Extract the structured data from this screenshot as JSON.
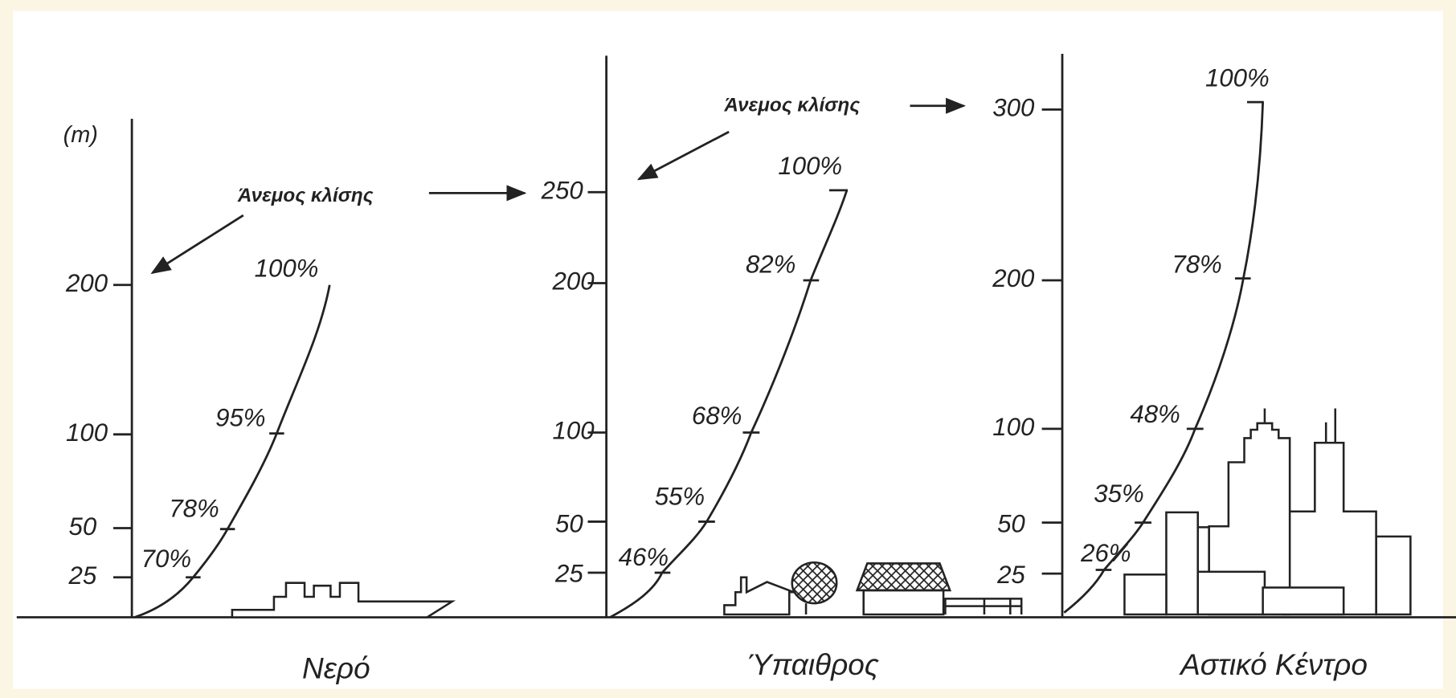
{
  "unit_label": "(m)",
  "panels": [
    {
      "title": "Νερό",
      "gradient_wind_label": "Άνεμος κλίσης",
      "y_ticks": [
        "200",
        "100",
        "50",
        "25"
      ],
      "profile_labels": [
        "100%",
        "95%",
        "78%",
        "70%"
      ]
    },
    {
      "title": "Ύπαιθρος",
      "gradient_wind_label": "Άνεμος κλίσης",
      "y_ticks": [
        "250",
        "200",
        "100",
        "50",
        "25"
      ],
      "profile_labels": [
        "100%",
        "82%",
        "68%",
        "55%",
        "46%"
      ]
    },
    {
      "title": "Αστικό Κέντρο",
      "y_ticks": [
        "300",
        "200",
        "100",
        "50",
        "25"
      ],
      "profile_labels": [
        "100%",
        "78%",
        "48%",
        "35%",
        "26%"
      ]
    }
  ]
}
